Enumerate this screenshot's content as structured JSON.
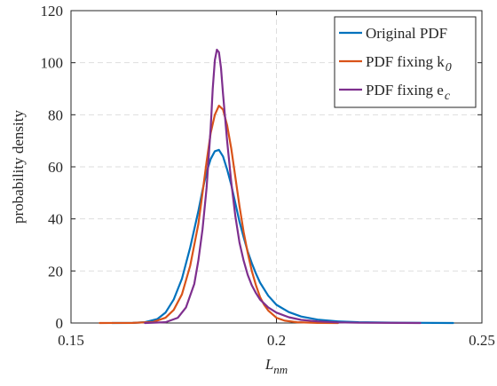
{
  "chart_data": {
    "type": "line",
    "xlabel": "L",
    "xlabel_subscript": "nm",
    "ylabel": "probability density",
    "xlim": [
      0.15,
      0.25
    ],
    "ylim": [
      0,
      120
    ],
    "x_ticks": [
      0.15,
      0.2,
      0.25
    ],
    "x_tick_labels": [
      "0.15",
      "0.2",
      "0.25"
    ],
    "y_ticks": [
      0,
      20,
      40,
      60,
      80,
      100,
      120
    ],
    "y_tick_labels": [
      "0",
      "20",
      "40",
      "60",
      "80",
      "100",
      "120"
    ],
    "grid": true,
    "legend_position": "top-right",
    "series": [
      {
        "name": "Original PDF",
        "color": "#0072BD",
        "points": [
          [
            0.16,
            0.0
          ],
          [
            0.165,
            0.05
          ],
          [
            0.168,
            0.3
          ],
          [
            0.171,
            1.5
          ],
          [
            0.173,
            4
          ],
          [
            0.175,
            9
          ],
          [
            0.177,
            17
          ],
          [
            0.179,
            29
          ],
          [
            0.181,
            43
          ],
          [
            0.182,
            51
          ],
          [
            0.183,
            58
          ],
          [
            0.184,
            63
          ],
          [
            0.185,
            66
          ],
          [
            0.186,
            66.5
          ],
          [
            0.187,
            64
          ],
          [
            0.188,
            59
          ],
          [
            0.189,
            53
          ],
          [
            0.19,
            46
          ],
          [
            0.191,
            39
          ],
          [
            0.192,
            33
          ],
          [
            0.193,
            27.5
          ],
          [
            0.194,
            23
          ],
          [
            0.195,
            19
          ],
          [
            0.196,
            15.5
          ],
          [
            0.198,
            10.5
          ],
          [
            0.2,
            7
          ],
          [
            0.203,
            4.2
          ],
          [
            0.206,
            2.5
          ],
          [
            0.21,
            1.3
          ],
          [
            0.215,
            0.6
          ],
          [
            0.22,
            0.3
          ],
          [
            0.23,
            0.1
          ],
          [
            0.243,
            0.0
          ]
        ]
      },
      {
        "name": "PDF fixing k",
        "name_subscript": "0",
        "color": "#D95319",
        "points": [
          [
            0.157,
            0.0
          ],
          [
            0.165,
            0.05
          ],
          [
            0.17,
            0.4
          ],
          [
            0.173,
            2
          ],
          [
            0.175,
            5
          ],
          [
            0.177,
            11
          ],
          [
            0.179,
            22
          ],
          [
            0.181,
            38
          ],
          [
            0.182,
            50
          ],
          [
            0.183,
            62
          ],
          [
            0.184,
            73
          ],
          [
            0.185,
            80
          ],
          [
            0.186,
            83.5
          ],
          [
            0.187,
            82
          ],
          [
            0.188,
            76
          ],
          [
            0.189,
            67
          ],
          [
            0.19,
            56
          ],
          [
            0.191,
            45
          ],
          [
            0.192,
            35
          ],
          [
            0.193,
            27
          ],
          [
            0.194,
            20
          ],
          [
            0.195,
            14.5
          ],
          [
            0.196,
            10
          ],
          [
            0.197,
            7
          ],
          [
            0.198,
            4.8
          ],
          [
            0.2,
            2
          ],
          [
            0.202,
            0.9
          ],
          [
            0.205,
            0.3
          ],
          [
            0.21,
            0.05
          ],
          [
            0.215,
            0.0
          ]
        ]
      },
      {
        "name": "PDF fixing e",
        "name_subscript": "c",
        "color": "#7E2F8E",
        "points": [
          [
            0.168,
            0.0
          ],
          [
            0.173,
            0.3
          ],
          [
            0.176,
            2
          ],
          [
            0.178,
            6
          ],
          [
            0.18,
            15
          ],
          [
            0.181,
            24
          ],
          [
            0.182,
            36
          ],
          [
            0.183,
            52
          ],
          [
            0.184,
            75
          ],
          [
            0.1845,
            90
          ],
          [
            0.185,
            101
          ],
          [
            0.1855,
            105
          ],
          [
            0.186,
            104
          ],
          [
            0.1865,
            98
          ],
          [
            0.187,
            88
          ],
          [
            0.188,
            70
          ],
          [
            0.189,
            54
          ],
          [
            0.19,
            41
          ],
          [
            0.191,
            31
          ],
          [
            0.192,
            24
          ],
          [
            0.193,
            18.5
          ],
          [
            0.194,
            14.5
          ],
          [
            0.195,
            11.5
          ],
          [
            0.196,
            9
          ],
          [
            0.198,
            6
          ],
          [
            0.2,
            4
          ],
          [
            0.203,
            2.2
          ],
          [
            0.206,
            1.2
          ],
          [
            0.21,
            0.6
          ],
          [
            0.215,
            0.25
          ],
          [
            0.22,
            0.1
          ],
          [
            0.23,
            0.02
          ],
          [
            0.235,
            0.0
          ]
        ]
      }
    ]
  }
}
